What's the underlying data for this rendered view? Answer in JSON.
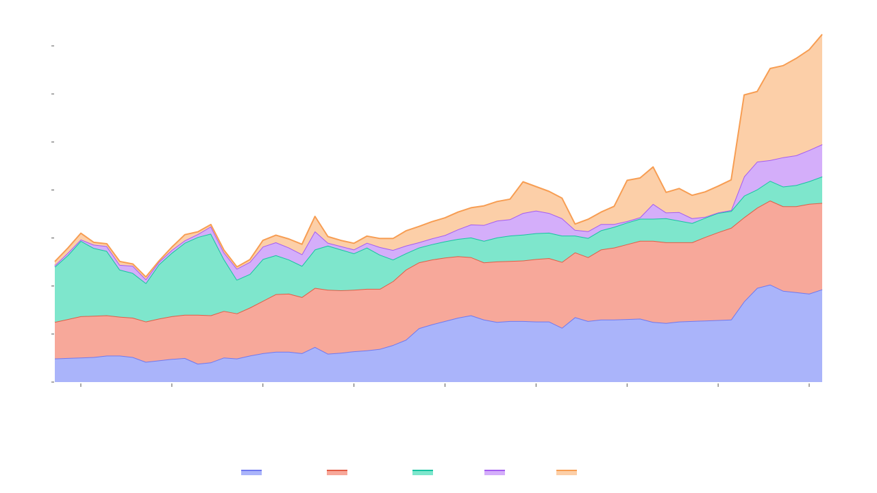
{
  "chart_data": {
    "type": "area",
    "stacked": true,
    "x": [
      0,
      1,
      2,
      3,
      4,
      5,
      6,
      7,
      8,
      9,
      10,
      11,
      12,
      13,
      14,
      15,
      16,
      17,
      18,
      19,
      20,
      21,
      22,
      23,
      24,
      25,
      26,
      27,
      28,
      29,
      30,
      31,
      32,
      33,
      34,
      35,
      36,
      37,
      38,
      39,
      40,
      41,
      42,
      43,
      44,
      45,
      46,
      47,
      48,
      49,
      50,
      51,
      52,
      53,
      54,
      55,
      56,
      57,
      58,
      59
    ],
    "x_ticks": [
      2,
      9,
      16,
      23,
      30,
      37,
      44,
      51,
      58
    ],
    "y_ticks": [
      0,
      1,
      2,
      3,
      4,
      5,
      6,
      7
    ],
    "ylim": [
      0,
      7.1
    ],
    "xlim": [
      0,
      59
    ],
    "grid": false,
    "legend_position": "bottom",
    "series": [
      {
        "color": "#aab4fa",
        "stroke": "#6f78ef",
        "values": [
          0.49,
          0.5,
          0.51,
          0.52,
          0.55,
          0.55,
          0.52,
          0.42,
          0.45,
          0.48,
          0.5,
          0.38,
          0.41,
          0.51,
          0.49,
          0.55,
          0.6,
          0.63,
          0.63,
          0.6,
          0.73,
          0.59,
          0.61,
          0.64,
          0.66,
          0.69,
          0.77,
          0.88,
          1.12,
          1.2,
          1.27,
          1.34,
          1.39,
          1.3,
          1.25,
          1.27,
          1.27,
          1.26,
          1.26,
          1.13,
          1.35,
          1.27,
          1.3,
          1.3,
          1.31,
          1.32,
          1.25,
          1.23,
          1.26,
          1.27,
          1.28,
          1.29,
          1.3,
          1.68,
          1.96,
          2.03,
          1.9,
          1.87,
          1.84,
          1.93
        ]
      },
      {
        "color": "#f7a89a",
        "stroke": "#e25c45",
        "values": [
          0.76,
          0.81,
          0.86,
          0.86,
          0.84,
          0.81,
          0.82,
          0.84,
          0.87,
          0.89,
          0.9,
          1.02,
          0.98,
          0.97,
          0.94,
          1.0,
          1.09,
          1.2,
          1.21,
          1.17,
          1.23,
          1.33,
          1.3,
          1.28,
          1.28,
          1.25,
          1.33,
          1.46,
          1.37,
          1.35,
          1.32,
          1.28,
          1.21,
          1.19,
          1.26,
          1.25,
          1.26,
          1.3,
          1.32,
          1.37,
          1.35,
          1.33,
          1.46,
          1.5,
          1.56,
          1.62,
          1.69,
          1.68,
          1.65,
          1.64,
          1.74,
          1.83,
          1.91,
          1.75,
          1.67,
          1.75,
          1.76,
          1.79,
          1.87,
          1.8
        ]
      },
      {
        "color": "#7ee6cc",
        "stroke": "#16c4a0",
        "values": [
          1.15,
          1.33,
          1.57,
          1.41,
          1.34,
          0.98,
          0.93,
          0.8,
          1.13,
          1.32,
          1.5,
          1.62,
          1.7,
          1.08,
          0.7,
          0.7,
          0.87,
          0.81,
          0.71,
          0.65,
          0.8,
          0.92,
          0.85,
          0.76,
          0.86,
          0.71,
          0.45,
          0.34,
          0.31,
          0.32,
          0.34,
          0.36,
          0.41,
          0.45,
          0.5,
          0.53,
          0.54,
          0.54,
          0.53,
          0.55,
          0.35,
          0.4,
          0.4,
          0.43,
          0.45,
          0.46,
          0.46,
          0.5,
          0.45,
          0.4,
          0.4,
          0.4,
          0.35,
          0.45,
          0.38,
          0.41,
          0.41,
          0.44,
          0.47,
          0.55
        ]
      },
      {
        "color": "#d4aefa",
        "stroke": "#a45cf0",
        "values": [
          0.03,
          0.05,
          0.03,
          0.07,
          0.1,
          0.1,
          0.15,
          0.08,
          0.05,
          0.06,
          0.05,
          0.06,
          0.15,
          0.14,
          0.23,
          0.25,
          0.26,
          0.27,
          0.25,
          0.24,
          0.38,
          0.06,
          0.07,
          0.08,
          0.1,
          0.16,
          0.2,
          0.16,
          0.11,
          0.12,
          0.13,
          0.2,
          0.27,
          0.33,
          0.35,
          0.34,
          0.45,
          0.47,
          0.41,
          0.36,
          0.12,
          0.14,
          0.13,
          0.06,
          0.03,
          0.03,
          0.31,
          0.12,
          0.18,
          0.1,
          0.02,
          0.01,
          0.02,
          0.4,
          0.58,
          0.43,
          0.61,
          0.62,
          0.65,
          0.67
        ]
      },
      {
        "color": "#fccfa8",
        "stroke": "#f79d52",
        "values": [
          0.08,
          0.1,
          0.13,
          0.05,
          0.05,
          0.07,
          0.04,
          0.05,
          0.02,
          0.06,
          0.12,
          0.05,
          0.04,
          0.05,
          0.04,
          0.05,
          0.13,
          0.15,
          0.18,
          0.21,
          0.31,
          0.13,
          0.12,
          0.13,
          0.14,
          0.18,
          0.24,
          0.31,
          0.33,
          0.35,
          0.36,
          0.36,
          0.35,
          0.4,
          0.4,
          0.42,
          0.65,
          0.5,
          0.45,
          0.42,
          0.12,
          0.25,
          0.25,
          0.37,
          0.85,
          0.82,
          0.77,
          0.42,
          0.49,
          0.48,
          0.52,
          0.55,
          0.63,
          1.7,
          1.46,
          1.91,
          1.91,
          2.02,
          2.09,
          2.29
        ]
      }
    ]
  }
}
